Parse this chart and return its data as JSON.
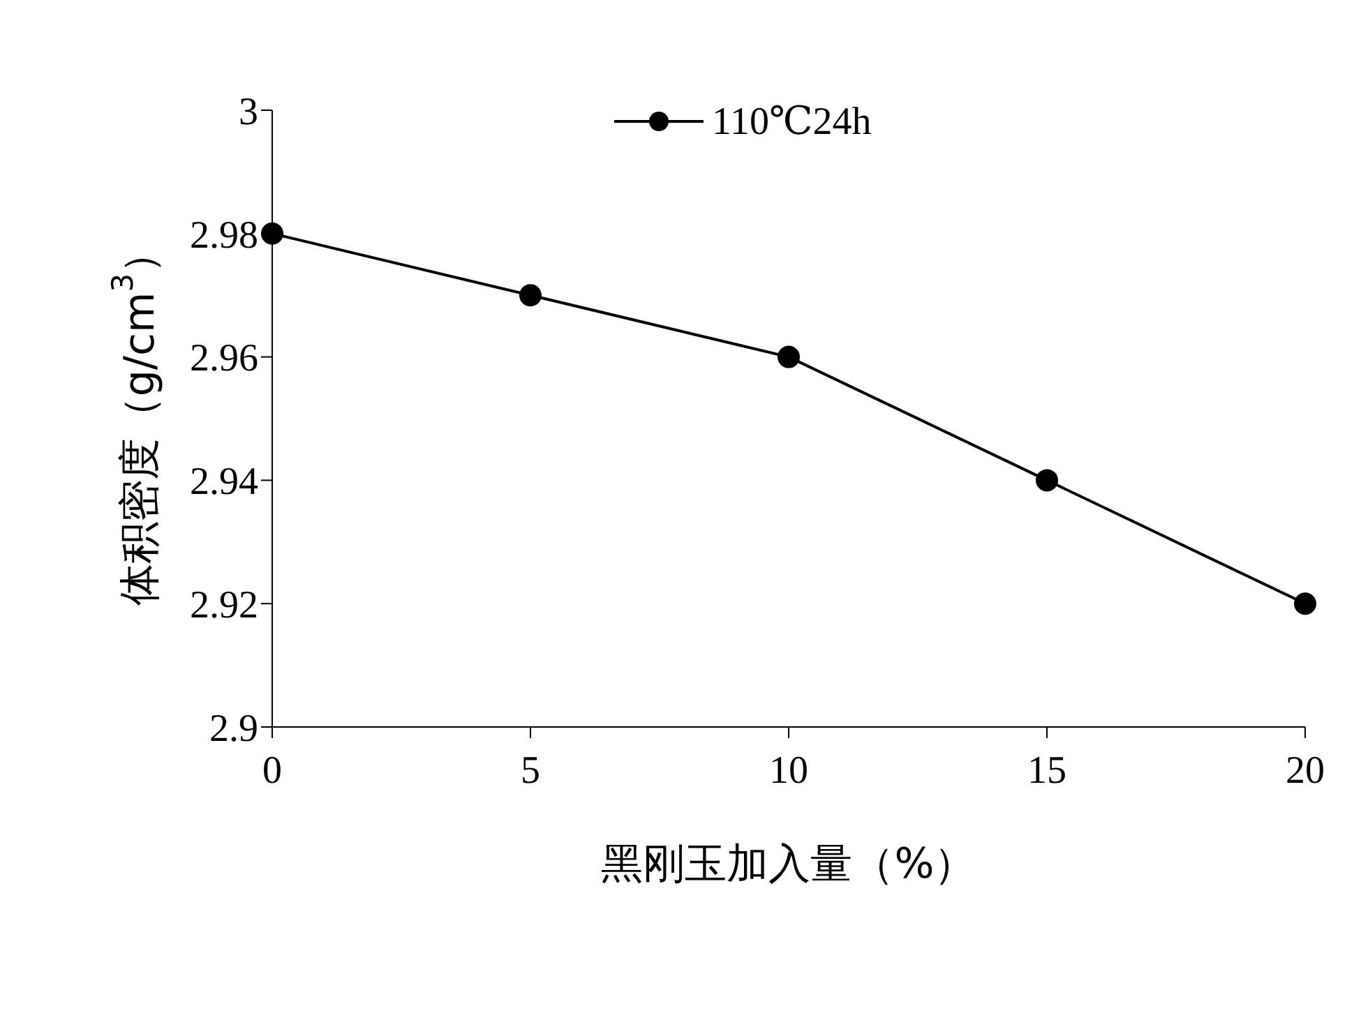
{
  "chart_data": {
    "type": "line",
    "xlabel": "黑刚玉加入量（%）",
    "ylabel": "体积密度（g/cm$^{3}$）",
    "x": [
      0,
      5,
      10,
      15,
      20
    ],
    "series": [
      {
        "name": "110℃24h",
        "color": "#000000",
        "values": [
          2.98,
          2.97,
          2.96,
          2.94,
          2.92
        ]
      }
    ],
    "xlim": [
      0,
      20
    ],
    "xticks": [
      0,
      5,
      10,
      15,
      20
    ],
    "ylim": [
      2.9,
      3
    ],
    "yticks": [
      2.9,
      2.92,
      2.94,
      2.96,
      2.98,
      3
    ],
    "grid": false,
    "legend": "top",
    "marker": "circle",
    "line_style": "solid"
  }
}
